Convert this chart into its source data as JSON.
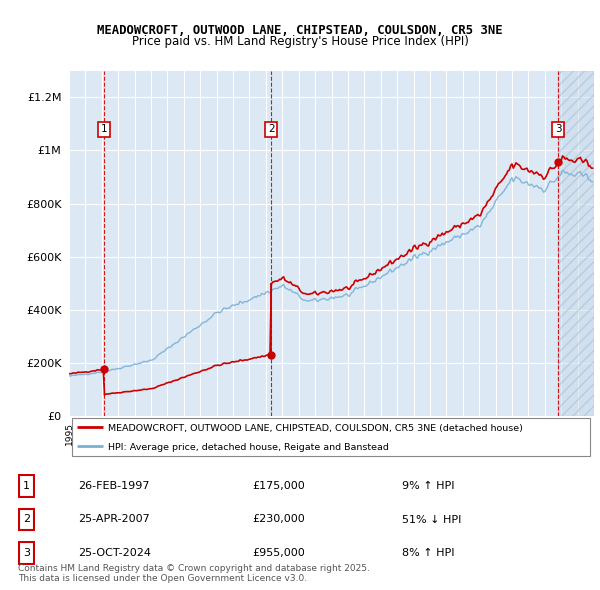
{
  "title_line1": "MEADOWCROFT, OUTWOOD LANE, CHIPSTEAD, COULSDON, CR5 3NE",
  "title_line2": "Price paid vs. HM Land Registry's House Price Index (HPI)",
  "bg_color": "#dce9f5",
  "red_line_color": "#cc0000",
  "blue_line_color": "#7ab0d4",
  "dashed_line_color": "#cc0000",
  "ylim": [
    0,
    1300000
  ],
  "yticks": [
    0,
    200000,
    400000,
    600000,
    800000,
    1000000,
    1200000
  ],
  "year_start": 1995,
  "year_end": 2027,
  "sale1": {
    "year": 1997.15,
    "price": 175000,
    "label": "1",
    "date": "26-FEB-1997",
    "pct": "9%",
    "dir": "↑"
  },
  "sale2": {
    "year": 2007.32,
    "price": 230000,
    "label": "2",
    "date": "25-APR-2007",
    "pct": "51%",
    "dir": "↓"
  },
  "sale3": {
    "year": 2024.82,
    "price": 955000,
    "label": "3",
    "date": "25-OCT-2024",
    "pct": "8%",
    "dir": "↑"
  },
  "legend_label_red": "MEADOWCROFT, OUTWOOD LANE, CHIPSTEAD, COULSDON, CR5 3NE (detached house)",
  "legend_label_blue": "HPI: Average price, detached house, Reigate and Banstead",
  "footer": "Contains HM Land Registry data © Crown copyright and database right 2025.\nThis data is licensed under the Open Government Licence v3.0."
}
